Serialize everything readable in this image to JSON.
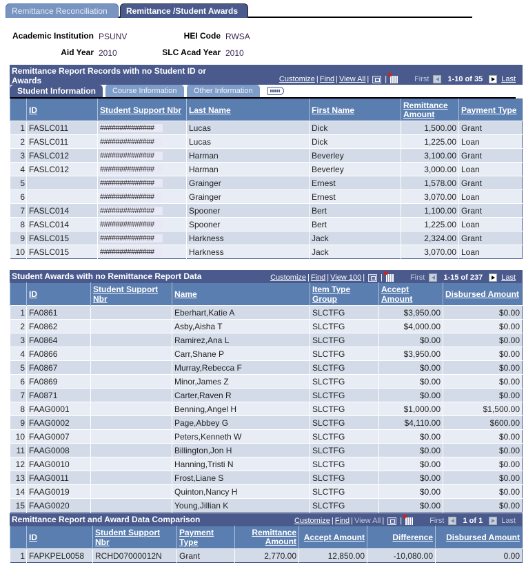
{
  "page_tabs": [
    {
      "label": "Remittance Reconciliation",
      "active": false
    },
    {
      "label": "Remittance /Student Awards",
      "active": true
    }
  ],
  "header": {
    "academic_institution_label": "Academic Institution",
    "academic_institution": "PSUNV",
    "hei_code_label": "HEI Code",
    "hei_code": "RWSA",
    "aid_year_label": "Aid Year",
    "aid_year": "2010",
    "slc_acad_year_label": "SLC Acad Year",
    "slc_acad_year": "2010"
  },
  "grid1": {
    "title_line1": "Remittance Report Records with no Student ID or",
    "title_line2": "Awards",
    "nav": {
      "customize": "Customize",
      "find": "Find",
      "view_all": "View All",
      "first": "First",
      "count": "1-10 of 35",
      "last": "Last"
    },
    "tabs": [
      "Student Information",
      "Course Information",
      "Other Information"
    ],
    "columns": [
      "ID",
      "Student Support Nbr",
      "Last Name",
      "First Name",
      "Remittance Amount",
      "Payment Type"
    ],
    "rows": [
      {
        "n": "1",
        "id": "FASLC011",
        "ssn": "##############",
        "last": "Lucas",
        "first": "Dick",
        "amount": "1,500.00",
        "type": "Grant"
      },
      {
        "n": "2",
        "id": "FASLC011",
        "ssn": "##############",
        "last": "Lucas",
        "first": "Dick",
        "amount": "1,225.00",
        "type": "Loan"
      },
      {
        "n": "3",
        "id": "FASLC012",
        "ssn": "##############",
        "last": "Harman",
        "first": "Beverley",
        "amount": "3,100.00",
        "type": "Grant"
      },
      {
        "n": "4",
        "id": "FASLC012",
        "ssn": "##############",
        "last": "Harman",
        "first": "Beverley",
        "amount": "3,000.00",
        "type": "Loan"
      },
      {
        "n": "5",
        "id": "",
        "ssn": "##############",
        "last": "Grainger",
        "first": "Ernest",
        "amount": "1,578.00",
        "type": "Grant"
      },
      {
        "n": "6",
        "id": "",
        "ssn": "##############",
        "last": "Grainger",
        "first": "Ernest",
        "amount": "3,070.00",
        "type": "Loan"
      },
      {
        "n": "7",
        "id": "FASLC014",
        "ssn": "##############",
        "last": "Spooner",
        "first": "Bert",
        "amount": "1,100.00",
        "type": "Grant"
      },
      {
        "n": "8",
        "id": "FASLC014",
        "ssn": "##############",
        "last": "Spooner",
        "first": "Bert",
        "amount": "1,225.00",
        "type": "Loan"
      },
      {
        "n": "9",
        "id": "FASLC015",
        "ssn": "##############",
        "last": "Harkness",
        "first": "Jack",
        "amount": "2,324.00",
        "type": "Grant"
      },
      {
        "n": "10",
        "id": "FASLC015",
        "ssn": "##############",
        "last": "Harkness",
        "first": "Jack",
        "amount": "3,070.00",
        "type": "Loan"
      }
    ]
  },
  "grid2": {
    "title": "Student Awards with no Remittance Report Data",
    "nav": {
      "customize": "Customize",
      "find": "Find",
      "view_all": "View 100",
      "first": "First",
      "count": "1-15 of 237",
      "last": "Last"
    },
    "columns": [
      "ID",
      "Student Support Nbr",
      "Name",
      "Item Type Group",
      "Accept Amount",
      "Disbursed Amount"
    ],
    "rows": [
      {
        "n": "1",
        "id": "FA0861",
        "ssn": "",
        "name": "Eberhart,Katie A",
        "group": "SLCTFG",
        "accept": "$3,950.00",
        "disbursed": "$0.00"
      },
      {
        "n": "2",
        "id": "FA0862",
        "ssn": "",
        "name": "Asby,Aisha T",
        "group": "SLCTFG",
        "accept": "$4,000.00",
        "disbursed": "$0.00"
      },
      {
        "n": "3",
        "id": "FA0864",
        "ssn": "",
        "name": "Ramirez,Ana L",
        "group": "SLCTFG",
        "accept": "$0.00",
        "disbursed": "$0.00"
      },
      {
        "n": "4",
        "id": "FA0866",
        "ssn": "",
        "name": "Carr,Shane P",
        "group": "SLCTFG",
        "accept": "$3,950.00",
        "disbursed": "$0.00"
      },
      {
        "n": "5",
        "id": "FA0867",
        "ssn": "",
        "name": "Murray,Rebecca F",
        "group": "SLCTFG",
        "accept": "$0.00",
        "disbursed": "$0.00"
      },
      {
        "n": "6",
        "id": "FA0869",
        "ssn": "",
        "name": "Minor,James Z",
        "group": "SLCTFG",
        "accept": "$0.00",
        "disbursed": "$0.00"
      },
      {
        "n": "7",
        "id": "FA0871",
        "ssn": "",
        "name": "Carter,Raven R",
        "group": "SLCTFG",
        "accept": "$0.00",
        "disbursed": "$0.00"
      },
      {
        "n": "8",
        "id": "FAAG0001",
        "ssn": "",
        "name": "Benning,Angel H",
        "group": "SLCTFG",
        "accept": "$1,000.00",
        "disbursed": "$1,500.00"
      },
      {
        "n": "9",
        "id": "FAAG0002",
        "ssn": "",
        "name": "Page,Abbey G",
        "group": "SLCTFG",
        "accept": "$4,110.00",
        "disbursed": "$600.00"
      },
      {
        "n": "10",
        "id": "FAAG0007",
        "ssn": "",
        "name": "Peters,Kenneth W",
        "group": "SLCTFG",
        "accept": "$0.00",
        "disbursed": "$0.00"
      },
      {
        "n": "11",
        "id": "FAAG0008",
        "ssn": "",
        "name": "Billington,Jon H",
        "group": "SLCTFG",
        "accept": "$0.00",
        "disbursed": "$0.00"
      },
      {
        "n": "12",
        "id": "FAAG0010",
        "ssn": "",
        "name": "Hanning,Tristi N",
        "group": "SLCTFG",
        "accept": "$0.00",
        "disbursed": "$0.00"
      },
      {
        "n": "13",
        "id": "FAAG0011",
        "ssn": "",
        "name": "Frost,Liane S",
        "group": "SLCTFG",
        "accept": "$0.00",
        "disbursed": "$0.00"
      },
      {
        "n": "14",
        "id": "FAAG0019",
        "ssn": "",
        "name": "Quinton,Nancy H",
        "group": "SLCTFG",
        "accept": "$0.00",
        "disbursed": "$0.00"
      },
      {
        "n": "15",
        "id": "FAAG0020",
        "ssn": "",
        "name": "Young,Jillian K",
        "group": "SLCTFG",
        "accept": "$0.00",
        "disbursed": "$0.00"
      }
    ]
  },
  "grid3": {
    "title": "Remittance Report and Award Data Comparison",
    "nav": {
      "customize": "Customize",
      "find": "Find",
      "view_all": "View All",
      "first": "First",
      "count": "1 of 1",
      "last": "Last"
    },
    "columns": [
      "ID",
      "Student Support Nbr",
      "Payment Type",
      "Remittance Amount",
      "Accept Amount",
      "Difference",
      "Disbursed Amount"
    ],
    "rows": [
      {
        "n": "1",
        "id": "FAPKPEL0058",
        "ssn": "RCHD07000012N",
        "type": "Grant",
        "remit": "2,770.00",
        "accept": "12,850.00",
        "diff": "-10,080.00",
        "disbursed": "0.00"
      }
    ]
  }
}
